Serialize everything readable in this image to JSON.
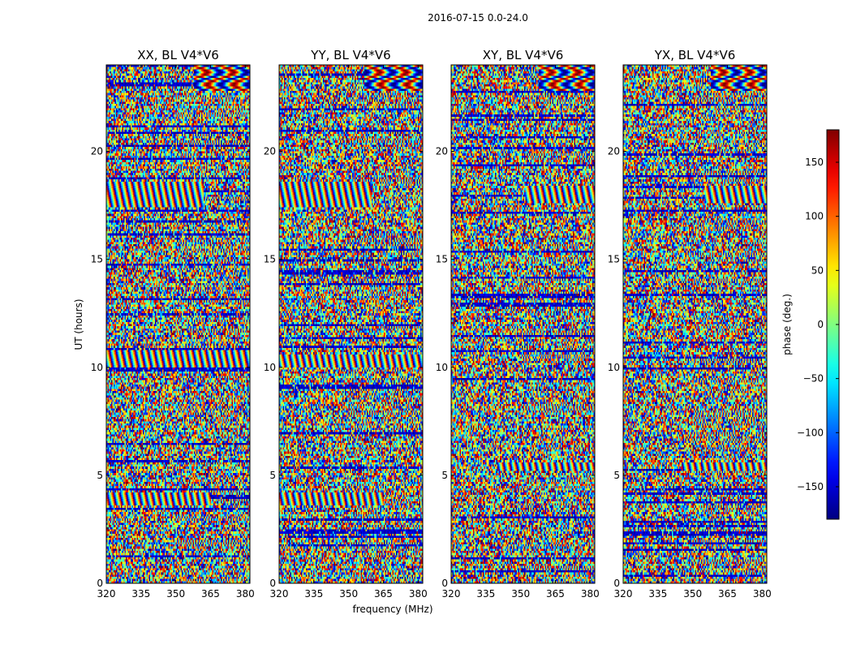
{
  "chart_data": {
    "type": "heatmap",
    "suptitle": "2016-07-15 0.0-24.0",
    "xlabel": "frequency (MHz)",
    "ylabel": "UT (hours)",
    "xlim": [
      320,
      382
    ],
    "ylim": [
      0,
      24
    ],
    "xticks": [
      320,
      335,
      350,
      365,
      380
    ],
    "yticks": [
      0,
      5,
      10,
      15,
      20
    ],
    "colormap": "jet",
    "colorbar": {
      "label": "phase (deg.)",
      "range": [
        -180,
        180
      ],
      "ticks": [
        -150,
        -100,
        -50,
        0,
        50,
        100,
        150
      ],
      "tick_labels": [
        "−150",
        "−100",
        "−50",
        "0",
        "50",
        "100",
        "150"
      ]
    },
    "panels": [
      {
        "title": "XX, BL V4*V6",
        "fringe_bands": [
          [
            17.4,
            18.6,
            320,
            362
          ],
          [
            3.6,
            4.2,
            320,
            365
          ],
          [
            10.0,
            10.8,
            320,
            382
          ]
        ],
        "fringe_corner": [
          [
            22.8,
            24.0,
            358,
            382
          ]
        ]
      },
      {
        "title": "YY, BL V4*V6",
        "fringe_bands": [
          [
            17.4,
            18.6,
            320,
            360
          ],
          [
            3.6,
            4.2,
            320,
            365
          ],
          [
            10.0,
            10.6,
            320,
            382
          ]
        ],
        "fringe_corner": [
          [
            22.8,
            24.0,
            357,
            382
          ]
        ]
      },
      {
        "title": "XY, BL V4*V6",
        "fringe_bands": [
          [
            17.6,
            18.4,
            352,
            382
          ],
          [
            5.2,
            5.6,
            340,
            382
          ]
        ],
        "fringe_corner": [
          [
            22.8,
            24.0,
            358,
            382
          ]
        ]
      },
      {
        "title": "YX, BL V4*V6",
        "fringe_bands": [
          [
            17.6,
            18.4,
            355,
            382
          ],
          [
            5.2,
            5.6,
            345,
            382
          ]
        ],
        "fringe_corner": [
          [
            22.8,
            24.0,
            358,
            382
          ]
        ]
      }
    ]
  }
}
